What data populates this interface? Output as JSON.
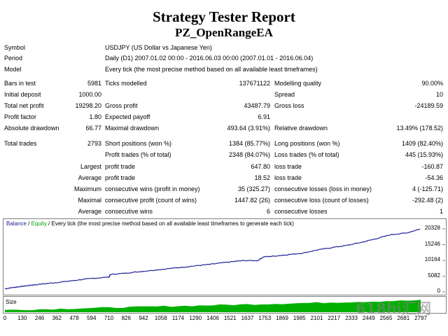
{
  "report": {
    "title": "Strategy Tester Report",
    "subtitle": "PZ_OpenRangeEA"
  },
  "header_rows": [
    {
      "label": "Symbol",
      "value": "USDJPY (US Dollar vs Japanese Yen)"
    },
    {
      "label": "Period",
      "value": "Daily (D1) 2007.01.02 00:00 - 2016.06.03 00:00 (2007.01.01 - 2016.06.04)"
    },
    {
      "label": "Model",
      "value": "Every tick (the most precise method based on all available least timeframes)"
    }
  ],
  "stats": {
    "bars_label": "Bars in test",
    "bars_value": "5981",
    "ticks_label": "Ticks modelled",
    "ticks_value": "137671122",
    "quality_label": "Modelling quality",
    "quality_value": "90.00%",
    "deposit_label": "Initial deposit",
    "deposit_value": "1000.00",
    "spread_label": "Spread",
    "spread_value": "10",
    "net_label": "Total net profit",
    "net_value": "19298.20",
    "gross_profit_label": "Gross profit",
    "gross_profit_value": "43487.79",
    "gross_loss_label": "Gross loss",
    "gross_loss_value": "-24189.59",
    "pf_label": "Profit factor",
    "pf_value": "1.80",
    "payoff_label": "Expected payoff",
    "payoff_value": "6.91",
    "abs_dd_label": "Absolute drawdown",
    "abs_dd_value": "66.77",
    "max_dd_label": "Maximal drawdown",
    "max_dd_value": "493.64 (3.91%)",
    "rel_dd_label": "Relative drawdown",
    "rel_dd_value": "13.49% (178.52)",
    "trades_label": "Total trades",
    "trades_value": "2793",
    "short_label": "Short positions (won %)",
    "short_value": "1384 (85.77%)",
    "long_label": "Long positions (won %)",
    "long_value": "1409 (82.40%)",
    "profit_trades_label": "Profit trades (% of total)",
    "profit_trades_value": "2348 (84.07%)",
    "loss_trades_label": "Loss trades (% of total)",
    "loss_trades_value": "445 (15.93%)",
    "largest_label": "Largest",
    "largest_profit_label": "profit trade",
    "largest_profit_value": "647.80",
    "largest_loss_label": "loss trade",
    "largest_loss_value": "-160.87",
    "average_label": "Average",
    "average_profit_label": "profit trade",
    "average_profit_value": "18.52",
    "average_loss_label": "loss trade",
    "average_loss_value": "-54.36",
    "maximum_label": "Maximum",
    "max_wins_label": "consecutive wins (profit in money)",
    "max_wins_value": "35 (325.27)",
    "max_losses_label": "consecutive losses (loss in money)",
    "max_losses_value": "4 (-125.71)",
    "maximal_label": "Maximal",
    "maximal_profit_label": "consecutive profit (count of wins)",
    "maximal_profit_value": "1447.82 (26)",
    "maximal_loss_label": "consecutive loss (count of losses)",
    "maximal_loss_value": "-292.48 (2)",
    "avg2_label": "Average",
    "avg_wins_label": "consecutive wins",
    "avg_wins_value": "6",
    "avg_losses_label": "consecutive losses",
    "avg_losses_value": "1"
  },
  "legend": {
    "balance": "Balance",
    "sep1": " / ",
    "equity": "Equity",
    "rest": " / Every tick (the most precise method based on all available least timeframes to generate each tick)"
  },
  "size_label": "Size",
  "watermark": "618hi汇网",
  "colors": {
    "balance": "#1f1f9a",
    "equity": "#00a000",
    "size": "#00b000"
  },
  "chart_data": {
    "type": "line",
    "series": [
      {
        "name": "Balance",
        "points": [
          [
            0,
            1000
          ],
          [
            50,
            1400
          ],
          [
            100,
            1700
          ],
          [
            150,
            2000
          ],
          [
            200,
            2300
          ],
          [
            300,
            2800
          ],
          [
            400,
            3300
          ],
          [
            500,
            3900
          ],
          [
            600,
            4400
          ],
          [
            700,
            4800
          ],
          [
            710,
            5600
          ],
          [
            800,
            6000
          ],
          [
            900,
            6500
          ],
          [
            1000,
            7000
          ],
          [
            1100,
            7500
          ],
          [
            1200,
            8000
          ],
          [
            1300,
            8500
          ],
          [
            1400,
            9000
          ],
          [
            1500,
            9600
          ],
          [
            1600,
            10100
          ],
          [
            1700,
            10100
          ],
          [
            1740,
            11300
          ],
          [
            1800,
            11500
          ],
          [
            1900,
            12000
          ],
          [
            2000,
            12500
          ],
          [
            2100,
            13500
          ],
          [
            2200,
            14300
          ],
          [
            2300,
            15000
          ],
          [
            2400,
            16000
          ],
          [
            2500,
            17200
          ],
          [
            2600,
            18500
          ],
          [
            2700,
            19000
          ],
          [
            2793,
            20300
          ]
        ]
      }
    ],
    "y_ticks": [
      "20328",
      "15246",
      "10164",
      "5082",
      "0"
    ],
    "y_range": [
      0,
      20328
    ],
    "x_ticks": [
      "0",
      "130",
      "246",
      "362",
      "478",
      "594",
      "710",
      "826",
      "942",
      "1058",
      "1174",
      "1290",
      "1406",
      "1521",
      "1637",
      "1753",
      "1869",
      "1985",
      "2101",
      "2217",
      "2333",
      "2449",
      "2565",
      "2681",
      "2797"
    ],
    "x_range": [
      0,
      2797
    ]
  }
}
